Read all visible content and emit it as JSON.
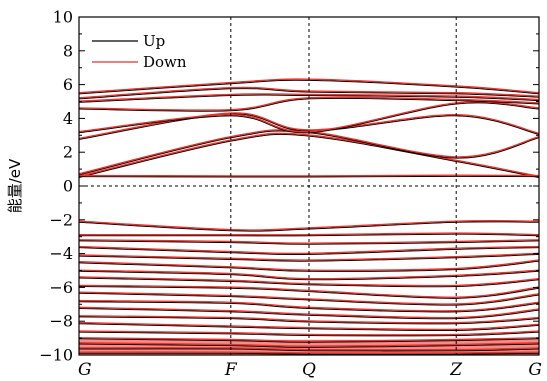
{
  "chart_data": {
    "type": "line",
    "ylabel": "能量/eV",
    "ylim": [
      -10,
      10
    ],
    "yticks": [
      -10,
      -8,
      -6,
      -4,
      -2,
      0,
      2,
      4,
      6,
      8,
      10
    ],
    "kpoints": [
      {
        "label": "G",
        "x": 0
      },
      {
        "label": "F",
        "x": 0.33
      },
      {
        "label": "Q",
        "x": 0.5
      },
      {
        "label": "Z",
        "x": 0.82
      },
      {
        "label": "G",
        "x": 1
      }
    ],
    "fermi_level": 0,
    "legend": {
      "position": "top-left",
      "entries": [
        {
          "name": "Up",
          "color": "#000000"
        },
        {
          "name": "Down",
          "color": "#e8312a"
        }
      ]
    },
    "series": [
      {
        "name": "Up",
        "color": "#000000"
      },
      {
        "name": "Down",
        "color": "#e8312a"
      }
    ],
    "bands": [
      {
        "x": [
          0,
          0.33,
          0.5,
          0.82,
          1
        ],
        "y": [
          0.55,
          2.7,
          3.0,
          1.5,
          0.55
        ]
      },
      {
        "x": [
          0,
          0.33,
          0.5,
          0.82,
          1
        ],
        "y": [
          0.7,
          2.9,
          3.2,
          1.7,
          2.9
        ]
      },
      {
        "x": [
          0,
          0.33,
          0.5,
          0.82,
          1
        ],
        "y": [
          0.6,
          0.58,
          0.58,
          0.62,
          0.6
        ]
      },
      {
        "x": [
          0,
          0.33,
          0.5,
          0.82,
          1
        ],
        "y": [
          2.8,
          4.3,
          3.3,
          4.2,
          3.1
        ]
      },
      {
        "x": [
          0,
          0.33,
          0.5,
          0.82,
          1
        ],
        "y": [
          3.2,
          4.2,
          3.2,
          4.9,
          4.6
        ]
      },
      {
        "x": [
          0,
          0.33,
          0.5,
          0.82,
          1
        ],
        "y": [
          4.6,
          4.5,
          5.2,
          5.1,
          4.9
        ]
      },
      {
        "x": [
          0,
          0.33,
          0.5,
          0.82,
          1
        ],
        "y": [
          5.0,
          5.4,
          5.4,
          5.3,
          5.1
        ]
      },
      {
        "x": [
          0,
          0.33,
          0.5,
          0.82,
          1
        ],
        "y": [
          5.2,
          5.8,
          5.6,
          5.5,
          5.3
        ]
      },
      {
        "x": [
          0,
          0.33,
          0.5,
          0.82,
          1
        ],
        "y": [
          5.5,
          6.1,
          6.3,
          5.9,
          5.5
        ]
      },
      {
        "x": [
          0,
          0.33,
          0.5,
          0.82,
          1
        ],
        "y": [
          -2.1,
          -2.6,
          -2.5,
          -2.1,
          -2.1
        ]
      },
      {
        "x": [
          0,
          0.33,
          0.5,
          0.82,
          1
        ],
        "y": [
          -2.9,
          -2.9,
          -2.9,
          -2.8,
          -2.9
        ]
      },
      {
        "x": [
          0,
          0.33,
          0.5,
          0.82,
          1
        ],
        "y": [
          -3.2,
          -3.3,
          -3.4,
          -3.3,
          -3.2
        ]
      },
      {
        "x": [
          0,
          0.33,
          0.5,
          0.82,
          1
        ],
        "y": [
          -3.6,
          -3.9,
          -4.0,
          -3.7,
          -3.6
        ]
      },
      {
        "x": [
          0,
          0.33,
          0.5,
          0.82,
          1
        ],
        "y": [
          -4.1,
          -4.3,
          -4.4,
          -4.2,
          -4.0
        ]
      },
      {
        "x": [
          0,
          0.33,
          0.5,
          0.82,
          1
        ],
        "y": [
          -4.5,
          -4.8,
          -5.0,
          -4.9,
          -4.4
        ]
      },
      {
        "x": [
          0,
          0.33,
          0.5,
          0.82,
          1
        ],
        "y": [
          -5.0,
          -5.2,
          -5.5,
          -5.3,
          -5.0
        ]
      },
      {
        "x": [
          0,
          0.33,
          0.5,
          0.82,
          1
        ],
        "y": [
          -5.4,
          -5.6,
          -5.8,
          -5.9,
          -5.5
        ]
      },
      {
        "x": [
          0,
          0.33,
          0.5,
          0.82,
          1
        ],
        "y": [
          -5.9,
          -6.0,
          -6.2,
          -6.6,
          -6.0
        ]
      },
      {
        "x": [
          0,
          0.33,
          0.5,
          0.82,
          1
        ],
        "y": [
          -6.3,
          -6.5,
          -6.7,
          -7.0,
          -6.4
        ]
      },
      {
        "x": [
          0,
          0.33,
          0.5,
          0.82,
          1
        ],
        "y": [
          -6.8,
          -6.9,
          -7.2,
          -7.4,
          -6.9
        ]
      },
      {
        "x": [
          0,
          0.33,
          0.5,
          0.82,
          1
        ],
        "y": [
          -7.2,
          -7.4,
          -7.6,
          -7.8,
          -7.3
        ]
      },
      {
        "x": [
          0,
          0.33,
          0.5,
          0.82,
          1
        ],
        "y": [
          -7.7,
          -7.8,
          -8.0,
          -8.1,
          -7.8
        ]
      },
      {
        "x": [
          0,
          0.33,
          0.5,
          0.82,
          1
        ],
        "y": [
          -8.1,
          -8.3,
          -8.4,
          -8.5,
          -8.2
        ]
      },
      {
        "x": [
          0,
          0.33,
          0.5,
          0.82,
          1
        ],
        "y": [
          -8.6,
          -8.7,
          -8.8,
          -8.8,
          -8.6
        ]
      },
      {
        "x": [
          0,
          0.33,
          0.5,
          0.82,
          1
        ],
        "y": [
          -9.0,
          -9.1,
          -9.2,
          -9.1,
          -9.0
        ]
      },
      {
        "x": [
          0,
          0.33,
          0.5,
          0.82,
          1
        ],
        "y": [
          -9.3,
          -9.4,
          -9.5,
          -9.4,
          -9.3
        ]
      },
      {
        "x": [
          0,
          0.33,
          0.5,
          0.82,
          1
        ],
        "y": [
          -9.6,
          -9.6,
          -9.7,
          -9.7,
          -9.6
        ]
      },
      {
        "x": [
          0,
          0.33,
          0.5,
          0.82,
          1
        ],
        "y": [
          -9.85,
          -9.85,
          -9.9,
          -9.9,
          -9.85
        ]
      }
    ]
  }
}
